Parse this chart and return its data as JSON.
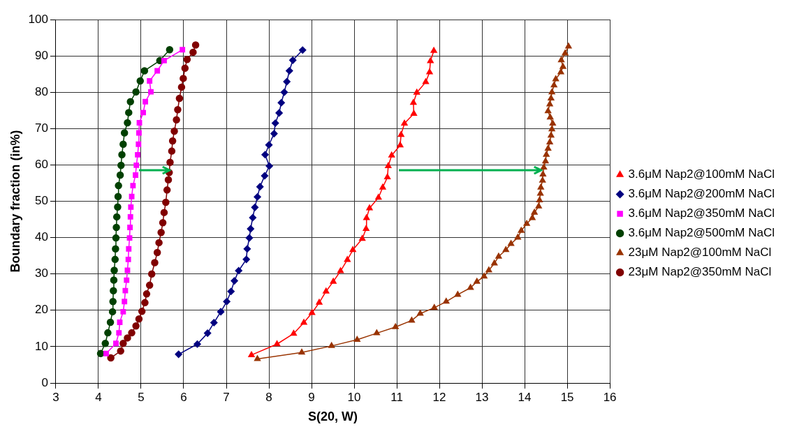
{
  "chart_data": {
    "type": "line",
    "xlabel": "S(20, W)",
    "ylabel": "Boundary fraction (in%)",
    "xlim": [
      3,
      16
    ],
    "xticks": [
      3,
      4,
      5,
      6,
      7,
      8,
      9,
      10,
      11,
      12,
      13,
      14,
      15,
      16
    ],
    "ylim": [
      0,
      100
    ],
    "yticks": [
      0,
      10,
      20,
      30,
      40,
      50,
      60,
      70,
      80,
      90,
      100
    ],
    "grid": true,
    "legend": "right",
    "series": [
      {
        "name": "3.6μM Nap2@100mM NaCl",
        "color": "#ff0000",
        "marker": "triangle",
        "x": [
          7.59,
          8.19,
          8.58,
          8.82,
          9.01,
          9.18,
          9.34,
          9.51,
          9.68,
          9.84,
          9.97,
          10.19,
          10.28,
          10.29,
          10.36,
          10.57,
          10.67,
          10.78,
          10.8,
          10.88,
          11.08,
          11.1,
          11.18,
          11.4,
          11.39,
          11.47,
          11.68,
          11.77,
          11.79,
          11.87
        ],
        "values": [
          7.7,
          10.7,
          13.6,
          16.6,
          19.3,
          22.1,
          25.2,
          27.9,
          30.8,
          33.9,
          36.6,
          39.7,
          42.4,
          45.4,
          48.1,
          51,
          53.8,
          56.6,
          59.7,
          62.6,
          65.4,
          68.3,
          71.4,
          74.1,
          77.1,
          79.9,
          82.8,
          85.5,
          88.6,
          91.4
        ]
      },
      {
        "name": "3.6μM Nap2@200mM NaCl",
        "color": "#000080",
        "marker": "diamond",
        "x": [
          5.88,
          6.32,
          6.56,
          6.71,
          6.87,
          7.01,
          7.11,
          7.19,
          7.29,
          7.47,
          7.49,
          7.54,
          7.57,
          7.62,
          7.67,
          7.73,
          7.79,
          7.9,
          8.01,
          7.91,
          8,
          8.12,
          8.15,
          8.24,
          8.29,
          8.36,
          8.42,
          8.48,
          8.56,
          8.79
        ],
        "values": [
          7.9,
          10.7,
          13.7,
          16.6,
          19.6,
          22.4,
          25.2,
          28.1,
          30.9,
          34,
          36.9,
          39.9,
          42.4,
          45.5,
          48.3,
          51.2,
          54,
          57,
          59.7,
          62.8,
          65.5,
          68.6,
          71.5,
          74.3,
          77.1,
          80,
          82.9,
          85.9,
          88.8,
          91.6
        ]
      },
      {
        "name": "3.6μM Nap2@350mM NaCl",
        "color": "#ff00ff",
        "marker": "square",
        "x": [
          4.18,
          4.41,
          4.48,
          4.5,
          4.58,
          4.61,
          4.63,
          4.66,
          4.68,
          4.7,
          4.71,
          4.73,
          4.74,
          4.75,
          4.76,
          4.78,
          4.81,
          4.87,
          4.89,
          4.92,
          4.94,
          4.95,
          4.96,
          5.05,
          5.1,
          5.23,
          5.2,
          5.38,
          5.54,
          5.97
        ],
        "values": [
          8.1,
          10.9,
          13.8,
          16.7,
          19.6,
          22.4,
          25.4,
          28.3,
          31,
          34,
          36.9,
          39.9,
          42.8,
          45.7,
          48.4,
          51.3,
          54.3,
          57.2,
          59.9,
          62.8,
          65.7,
          68.8,
          71.6,
          74.4,
          77.4,
          80.1,
          83.1,
          85.9,
          88.7,
          91.7
        ]
      },
      {
        "name": "3.6μM Nap2@500mM NaCl",
        "color": "#004000",
        "marker": "circle",
        "x": [
          4.05,
          4.16,
          4.22,
          4.28,
          4.33,
          4.34,
          4.35,
          4.36,
          4.37,
          4.39,
          4.4,
          4.41,
          4.42,
          4.43,
          4.45,
          4.46,
          4.47,
          4.51,
          4.53,
          4.55,
          4.58,
          4.61,
          4.68,
          4.71,
          4.75,
          4.88,
          4.98,
          5.08,
          5.44,
          5.67
        ],
        "values": [
          8.1,
          10.9,
          13.8,
          16.7,
          19.6,
          22.4,
          25.4,
          28.3,
          31,
          34,
          36.9,
          39.9,
          42.8,
          45.7,
          48.4,
          51.3,
          54.3,
          57.2,
          59.9,
          62.8,
          65.7,
          68.8,
          71.6,
          74.4,
          77.4,
          80.1,
          83.1,
          85.9,
          88.7,
          91.7
        ]
      },
      {
        "name": "23μM Nap2@100mM NaCl",
        "color": "#993300",
        "marker": "triangle",
        "x": [
          7.73,
          8.77,
          9.47,
          10.07,
          10.53,
          10.97,
          11.35,
          11.55,
          11.88,
          12.16,
          12.43,
          12.73,
          12.88,
          13.05,
          13.16,
          13.29,
          13.39,
          13.56,
          13.68,
          13.84,
          13.92,
          14.05,
          14.18,
          14.23,
          14.33,
          14.35,
          14.37,
          14.38,
          14.42,
          14.43,
          14.45,
          14.49,
          14.51,
          14.55,
          14.59,
          14.62,
          14.64,
          14.66,
          14.6,
          14.55,
          14.59,
          14.62,
          14.64,
          14.69,
          14.73,
          14.85,
          14.9,
          14.86,
          14.95,
          15.03
        ],
        "values": [
          6.6,
          8.4,
          10.2,
          11.9,
          13.7,
          15.4,
          17.2,
          19.1,
          20.7,
          22.4,
          24.3,
          26.2,
          27.9,
          29.3,
          31,
          32.9,
          34.8,
          36.6,
          38.3,
          40,
          41.9,
          43.8,
          45.4,
          46.9,
          48.6,
          50.3,
          52.1,
          53.8,
          55.7,
          57.4,
          59.3,
          61,
          62.8,
          64.5,
          66.2,
          68.1,
          69.8,
          71.4,
          73.1,
          74.8,
          76.7,
          78.3,
          80,
          81.9,
          83.6,
          85.5,
          87,
          88.8,
          90.7,
          92.6
        ]
      },
      {
        "name": "23μM Nap2@350mM NaCl",
        "color": "#800000",
        "marker": "circle",
        "x": [
          4.29,
          4.52,
          4.58,
          4.68,
          4.78,
          4.88,
          4.95,
          5.02,
          5.09,
          5.13,
          5.2,
          5.25,
          5.32,
          5.38,
          5.42,
          5.47,
          5.51,
          5.54,
          5.58,
          5.61,
          5.64,
          5.66,
          5.68,
          5.72,
          5.74,
          5.78,
          5.83,
          5.86,
          5.9,
          5.95,
          5.99,
          6.03,
          6.08,
          6.22,
          6.28
        ],
        "values": [
          6.9,
          8.8,
          10.9,
          12.4,
          13.8,
          15.7,
          17.6,
          19.7,
          22.1,
          24.5,
          26.9,
          30,
          33.1,
          35.9,
          38.6,
          41.4,
          44.1,
          46.9,
          49.7,
          53.1,
          55.9,
          57.9,
          60.7,
          63.8,
          66.6,
          69.3,
          72.4,
          75.2,
          78.3,
          81.4,
          83.8,
          86.6,
          89,
          91,
          93
        ]
      }
    ]
  }
}
